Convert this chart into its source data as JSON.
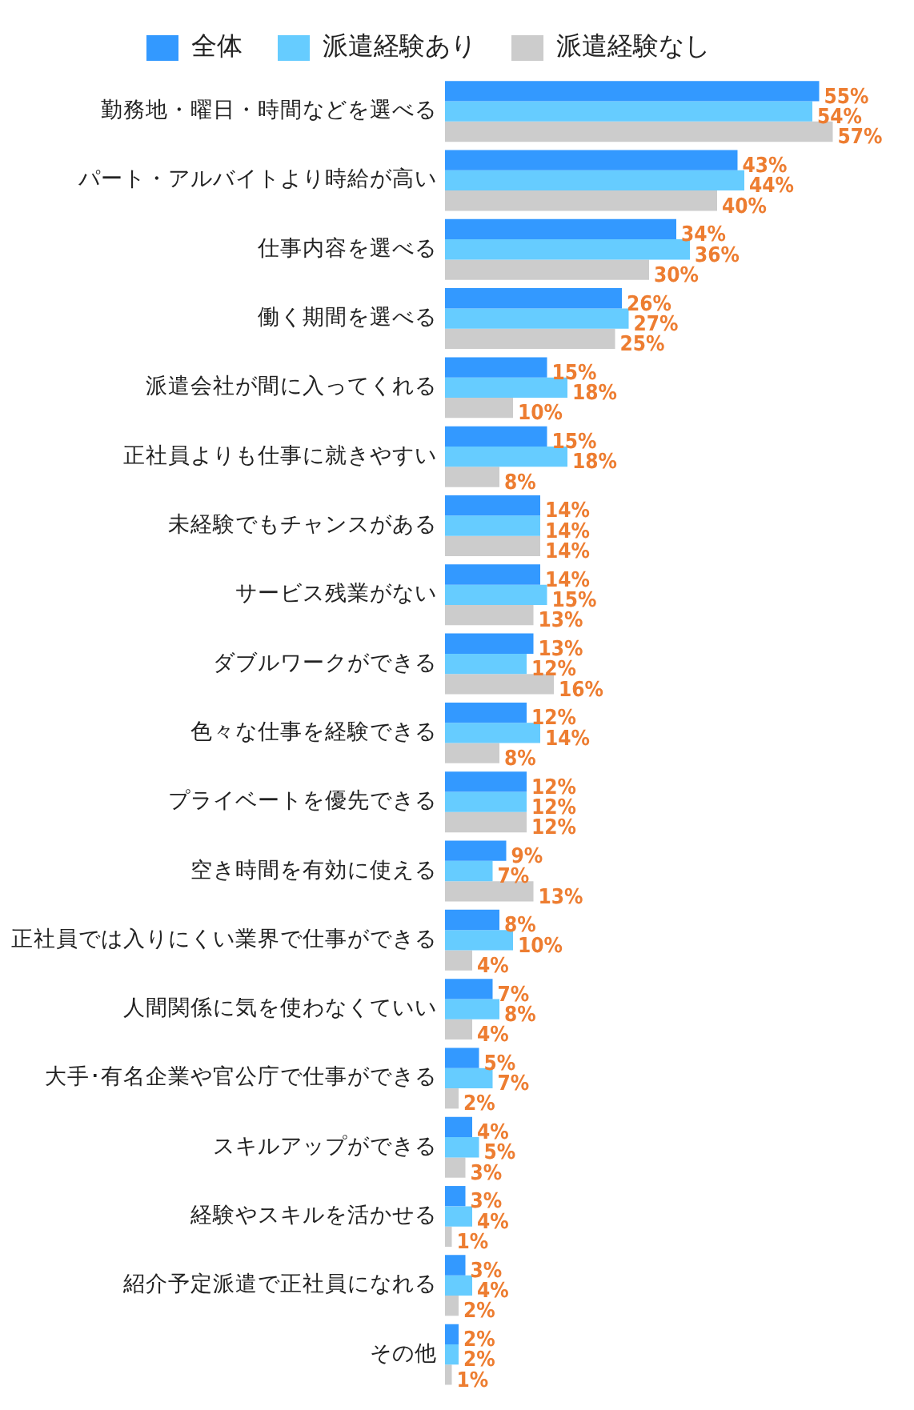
{
  "chart_data": {
    "type": "bar",
    "orientation": "horizontal",
    "legend": "top",
    "grid": false,
    "tick_labels": "y",
    "categories": [
      "勤務地・曜日・時間などを選べる",
      "パート・アルバイトより時給が高い",
      "仕事内容を選べる",
      "働く期間を選べる",
      "派遣会社が間に入ってくれる",
      "正社員よりも仕事に就きやすい",
      "未経験でもチャンスがある",
      "サービス残業がない",
      "ダブルワークができる",
      "色々な仕事を経験できる",
      "プライベートを優先できる",
      "空き時間を有効に使える",
      "正社員では入りにくい業界で仕事ができる",
      "人間関係に気を使わなくていい",
      "大手･有名企業や官公庁で仕事ができる",
      "スキルアップができる",
      "経験やスキルを活かせる",
      "紹介予定派遣で正社員になれる",
      "その他"
    ],
    "series": [
      {
        "name": "全体",
        "color": "#3399ff",
        "values": [
          55,
          43,
          34,
          26,
          15,
          15,
          14,
          14,
          13,
          12,
          12,
          9,
          8,
          7,
          5,
          4,
          3,
          3,
          2
        ],
        "value_labels": [
          "55%",
          "43%",
          "34%",
          "26%",
          "15%",
          "15%",
          "14%",
          "14%",
          "13%",
          "12%",
          "12%",
          "9%",
          "8%",
          "7%",
          "5%",
          "4%",
          "3%",
          "3%",
          "2%"
        ]
      },
      {
        "name": "派遣経験あり",
        "color": "#66ccff",
        "values": [
          54,
          44,
          36,
          27,
          18,
          18,
          14,
          15,
          12,
          14,
          12,
          7,
          10,
          8,
          7,
          5,
          4,
          4,
          2
        ],
        "value_labels": [
          "54%",
          "44%",
          "36%",
          "27%",
          "18%",
          "18%",
          "14%",
          "15%",
          "12%",
          "14%",
          "12%",
          "7%",
          "10%",
          "8%",
          "7%",
          "5%",
          "4%",
          "4%",
          "2%"
        ]
      },
      {
        "name": "派遣経験なし",
        "color": "#cccccc",
        "values": [
          57,
          40,
          30,
          25,
          10,
          8,
          14,
          13,
          16,
          8,
          12,
          13,
          4,
          4,
          2,
          3,
          1,
          2,
          1
        ],
        "value_labels": [
          "57%",
          "40%",
          "30%",
          "25%",
          "10%",
          "8%",
          "14%",
          "13%",
          "16%",
          "8%",
          "12%",
          "13%",
          "4%",
          "4%",
          "2%",
          "3%",
          "1%",
          "2%",
          "1%"
        ]
      }
    ]
  }
}
